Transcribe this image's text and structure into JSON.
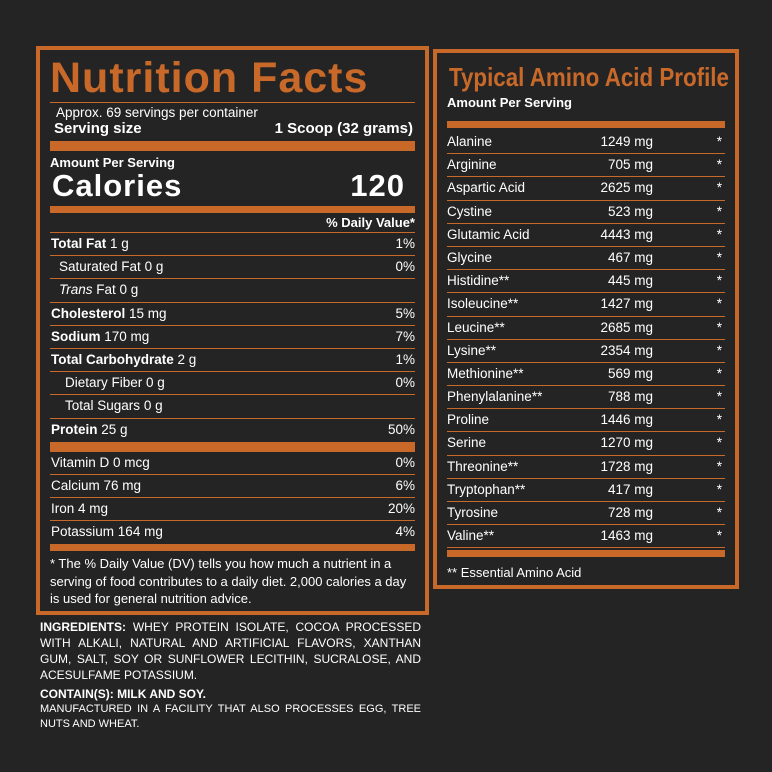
{
  "nutrition": {
    "title": "Nutrition Facts",
    "servings": "Approx. 69 servings per container",
    "serving_size_label": "Serving size",
    "serving_size_value": "1 Scoop (32 grams)",
    "amount_per_serving": "Amount Per Serving",
    "calories_label": "Calories",
    "calories_value": "120",
    "dv_header": "% Daily Value*",
    "rows": [
      {
        "name": "Total Fat",
        "amount": "1 g",
        "dv": "1%",
        "bold": true,
        "indent": 0
      },
      {
        "name": "Saturated Fat",
        "amount": "0 g",
        "dv": "0%",
        "bold": false,
        "indent": 1
      },
      {
        "name": "Trans",
        "name_suffix": " Fat",
        "amount": "0 g",
        "dv": "",
        "bold": false,
        "indent": 1,
        "italic": true
      },
      {
        "name": "Cholesterol",
        "amount": "15 mg",
        "dv": "5%",
        "bold": true,
        "indent": 0
      },
      {
        "name": "Sodium",
        "amount": "170 mg",
        "dv": "7%",
        "bold": true,
        "indent": 0
      },
      {
        "name": "Total Carbohydrate",
        "amount": "2 g",
        "dv": "1%",
        "bold": true,
        "indent": 0
      },
      {
        "name": "Dietary Fiber",
        "amount": "0 g",
        "dv": "0%",
        "bold": false,
        "indent": 2
      },
      {
        "name": "Total Sugars",
        "amount": "0 g",
        "dv": "",
        "bold": false,
        "indent": 2
      },
      {
        "name": "Protein",
        "amount": "25 g",
        "dv": "50%",
        "bold": true,
        "indent": 0
      }
    ],
    "vitamins": [
      {
        "name": "Vitamin D",
        "amount": "0 mcg",
        "dv": "0%"
      },
      {
        "name": "Calcium",
        "amount": "76 mg",
        "dv": "6%"
      },
      {
        "name": "Iron",
        "amount": "4 mg",
        "dv": "20%"
      },
      {
        "name": "Potassium",
        "amount": "164 mg",
        "dv": "4%"
      }
    ],
    "footnote": "* The % Daily Value (DV) tells you how much a nutrient in a serving of food contributes to a daily diet. 2,000 calories a day is used for general nutrition advice."
  },
  "ingredients": {
    "label": "INGREDIENTS:",
    "text": " WHEY PROTEIN ISOLATE, COCOA PROCESSED WITH ALKALI, NATURAL AND ARTIFICIAL FLAVORS, XANTHAN GUM, SALT, SOY OR SUNFLOWER LECITHIN, SUCRALOSE, AND ACESULFAME POTASSIUM.",
    "contains": "CONTAIN(S): MILK AND SOY.",
    "facility": "MANUFACTURED IN A FACILITY THAT ALSO PROCESSES EGG, TREE NUTS AND WHEAT."
  },
  "amino": {
    "title": "Typical Amino Acid Profile",
    "amount_per_serving": "Amount Per Serving",
    "rows": [
      {
        "name": "Alanine",
        "amount": "1249 mg",
        "mark": "*"
      },
      {
        "name": "Arginine",
        "amount": "705 mg",
        "mark": "*"
      },
      {
        "name": "Aspartic Acid",
        "amount": "2625 mg",
        "mark": "*"
      },
      {
        "name": "Cystine",
        "amount": "523 mg",
        "mark": "*"
      },
      {
        "name": "Glutamic Acid",
        "amount": "4443 mg",
        "mark": "*"
      },
      {
        "name": "Glycine",
        "amount": "467 mg",
        "mark": "*"
      },
      {
        "name": "Histidine**",
        "amount": "445 mg",
        "mark": "*"
      },
      {
        "name": "Isoleucine**",
        "amount": "1427 mg",
        "mark": "*"
      },
      {
        "name": "Leucine**",
        "amount": "2685 mg",
        "mark": "*"
      },
      {
        "name": "Lysine**",
        "amount": "2354 mg",
        "mark": "*"
      },
      {
        "name": "Methionine**",
        "amount": "569 mg",
        "mark": "*"
      },
      {
        "name": "Phenylalanine**",
        "amount": "788 mg",
        "mark": "*"
      },
      {
        "name": "Proline",
        "amount": "1446 mg",
        "mark": "*"
      },
      {
        "name": "Serine",
        "amount": "1270 mg",
        "mark": "*"
      },
      {
        "name": "Threonine**",
        "amount": "1728 mg",
        "mark": "*"
      },
      {
        "name": "Tryptophan**",
        "amount": "417 mg",
        "mark": "*"
      },
      {
        "name": "Tyrosine",
        "amount": "728 mg",
        "mark": "*"
      },
      {
        "name": "Valine**",
        "amount": "1463 mg",
        "mark": "*"
      }
    ],
    "footnote": "** Essential Amino Acid"
  },
  "colors": {
    "accent": "#c8692a",
    "background": "#242424",
    "text": "#ffffff"
  }
}
